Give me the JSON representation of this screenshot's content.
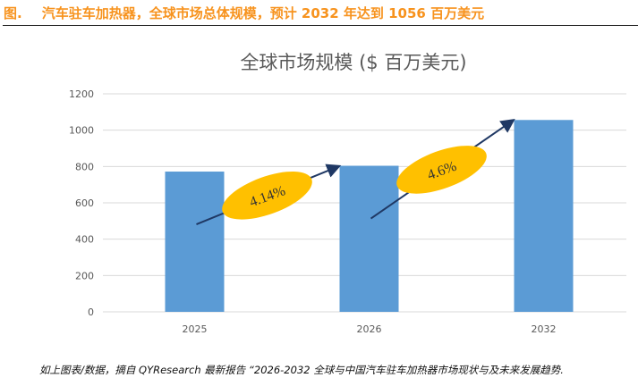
{
  "header": {
    "figure_label": "图.",
    "title": "汽车驻车加热器，全球市场总体规模，预计 2032 年达到 1056 百万美元"
  },
  "chart_data": {
    "type": "bar",
    "title": "全球市场规模 ($ 百万美元)",
    "categories": [
      "2025",
      "2026",
      "2032"
    ],
    "values": [
      772,
      804,
      1056
    ],
    "ylim": [
      0,
      1200
    ],
    "yticks": [
      0,
      200,
      400,
      600,
      800,
      1000,
      1200
    ],
    "ytick_labels": [
      "0",
      "200",
      "400",
      "600",
      "800",
      "1000",
      "1200"
    ],
    "grid": true,
    "xlabel": "",
    "ylabel": "",
    "annotations": [
      {
        "text": "4.14%",
        "from": "2025",
        "to": "2026"
      },
      {
        "text": "4.6%",
        "from": "2026",
        "to": "2032"
      }
    ],
    "colors": {
      "bar": "#5b9bd5",
      "ellipse": "#ffc000",
      "arrow": "#1f3864",
      "grid": "#d9d9d9"
    }
  },
  "footer": {
    "note": "如上图表/数据，摘自 QYResearch 最新报告 “2026-2032 全球与中国汽车驻车加热器市场现状与及未来发展趋势."
  }
}
